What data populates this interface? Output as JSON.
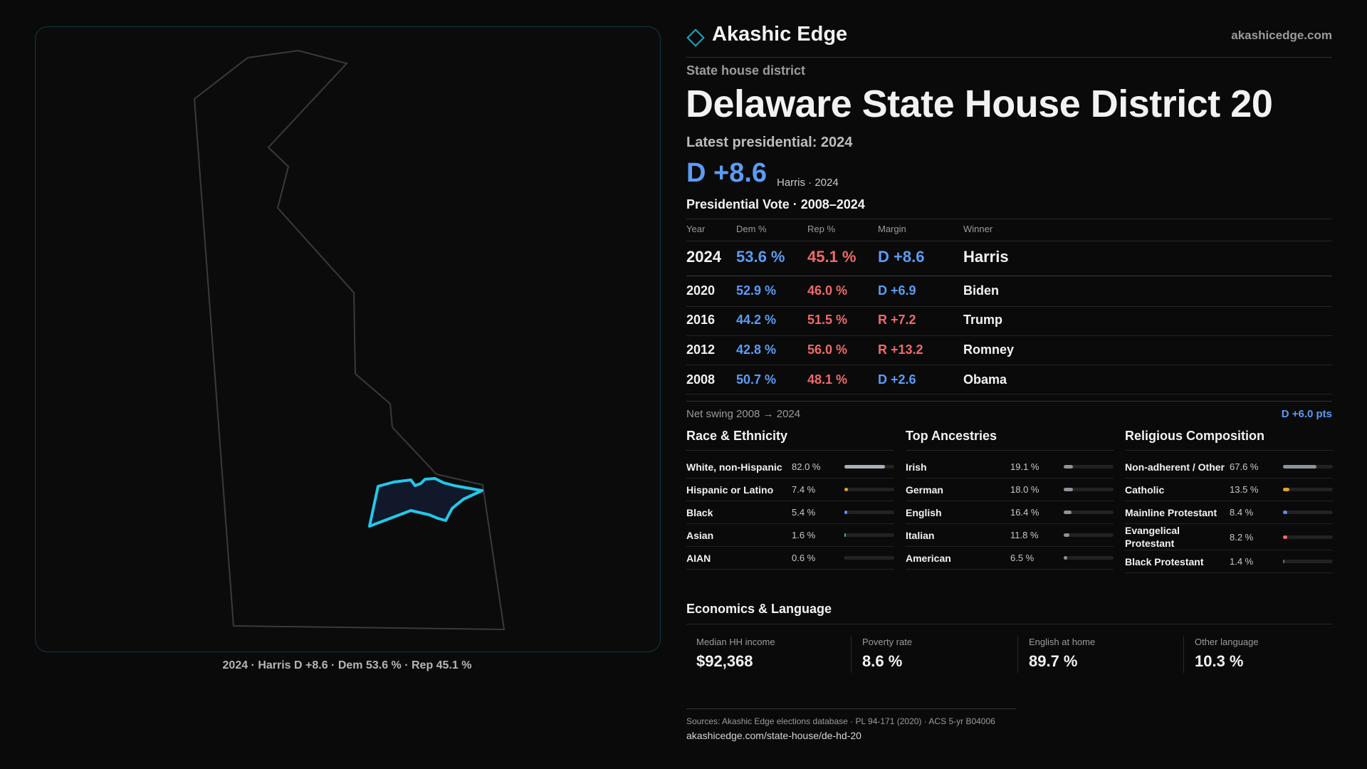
{
  "brand": {
    "name": "Akashic Edge",
    "site": "akashicedge.com"
  },
  "header": {
    "kicker": "State house district",
    "title": "Delaware State House District 20",
    "latest": "Latest presidential: 2024",
    "margin": "D +8.6",
    "margin_note": "Harris · 2024"
  },
  "map": {
    "caption": "2024 · Harris D +8.6 · Dem 53.6 % · Rep 45.1 %"
  },
  "presidential": {
    "title": "Presidential Vote · 2008–2024",
    "columns": [
      "Year",
      "Dem %",
      "Rep %",
      "Margin",
      "Winner"
    ],
    "rows": [
      [
        "2024",
        "53.6 %",
        "45.1 %",
        "D +8.6",
        "Harris"
      ],
      [
        "2020",
        "52.9 %",
        "46.0 %",
        "D +6.9",
        "Biden"
      ],
      [
        "2016",
        "44.2 %",
        "51.5 %",
        "R +7.2",
        "Trump"
      ],
      [
        "2012",
        "42.8 %",
        "56.0 %",
        "R +13.2",
        "Romney"
      ],
      [
        "2008",
        "50.7 %",
        "48.1 %",
        "D +2.6",
        "Obama"
      ]
    ],
    "swing_label": "Net swing 2008 → 2024",
    "swing": "D +6.0 pts"
  },
  "race": {
    "title": "Race & Ethnicity",
    "rows": [
      {
        "name": "White, non-Hispanic",
        "value": 82.0,
        "value_label": "82.0 %",
        "color": "#a9b0bb"
      },
      {
        "name": "Hispanic or Latino",
        "value": 7.4,
        "value_label": "7.4 %",
        "color": "#e0a030"
      },
      {
        "name": "Black",
        "value": 5.4,
        "value_label": "5.4 %",
        "color": "#5b8ef0"
      },
      {
        "name": "Asian",
        "value": 1.6,
        "value_label": "1.6 %",
        "color": "#3fb98a"
      },
      {
        "name": "AIAN",
        "value": 0.6,
        "value_label": "0.6 %",
        "color": "#2a2a2a"
      }
    ]
  },
  "ancestry": {
    "title": "Top Ancestries",
    "rows": [
      {
        "name": "Irish",
        "value": 19.1,
        "value_label": "19.1 %",
        "color": "#8d939c"
      },
      {
        "name": "German",
        "value": 18.0,
        "value_label": "18.0 %",
        "color": "#8d939c"
      },
      {
        "name": "English",
        "value": 16.4,
        "value_label": "16.4 %",
        "color": "#8d939c"
      },
      {
        "name": "Italian",
        "value": 11.8,
        "value_label": "11.8 %",
        "color": "#8d939c"
      },
      {
        "name": "American",
        "value": 6.5,
        "value_label": "6.5 %",
        "color": "#8d939c"
      }
    ]
  },
  "religion": {
    "title": "Religious Composition",
    "rows": [
      {
        "name": "Non-adherent / Other",
        "value": 67.6,
        "value_label": "67.6 %",
        "color": "#8d939c"
      },
      {
        "name": "Catholic",
        "value": 13.5,
        "value_label": "13.5 %",
        "color": "#e0a030"
      },
      {
        "name": "Mainline Protestant",
        "value": 8.4,
        "value_label": "8.4 %",
        "color": "#5b8ef0"
      },
      {
        "name": "Evangelical Protestant",
        "value": 8.2,
        "value_label": "8.2 %",
        "color": "#f06a6a"
      },
      {
        "name": "Black Protestant",
        "value": 1.4,
        "value_label": "1.4 %",
        "color": "#6a6a6a"
      }
    ]
  },
  "economics": {
    "title": "Economics & Language",
    "cards": [
      {
        "label": "Median HH income",
        "value": "$92,368"
      },
      {
        "label": "Poverty rate",
        "value": "8.6 %"
      },
      {
        "label": "English at home",
        "value": "89.7 %"
      },
      {
        "label": "Other language",
        "value": "10.3 %"
      }
    ]
  },
  "footer": {
    "sources": "Sources: Akashic Edge elections database · PL 94-171 (2020) · ACS 5-yr B04006",
    "url": "akashicedge.com/state-house/de-hd-20"
  }
}
